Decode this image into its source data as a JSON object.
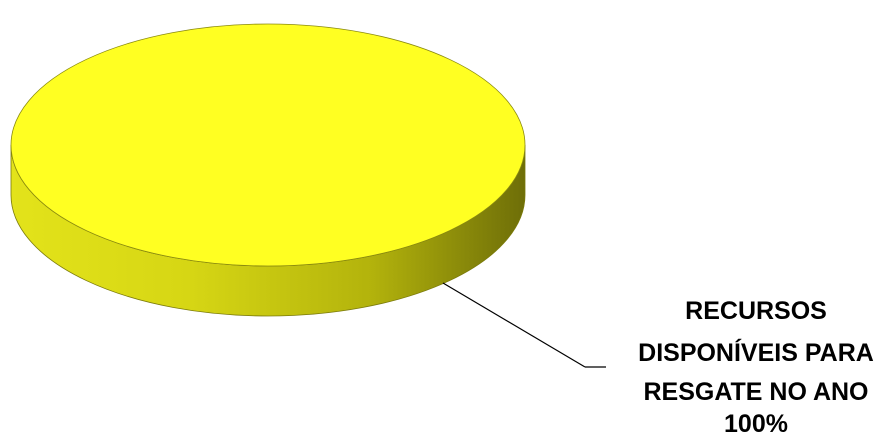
{
  "chart_data": {
    "type": "pie",
    "style": "3d",
    "title": "",
    "categories": [
      "RECURSOS DISPONÍVEIS PARA RESGATE NO ANO"
    ],
    "values": [
      100
    ],
    "value_unit": "%",
    "colors": [
      "#ffff22"
    ],
    "data_labels": [
      {
        "lines": [
          "RECURSOS",
          "DISPONÍVEIS PARA",
          "RESGATE NO ANO",
          "100%"
        ],
        "placement": "bottom-right",
        "leader_line": true
      }
    ],
    "legend": "none"
  }
}
